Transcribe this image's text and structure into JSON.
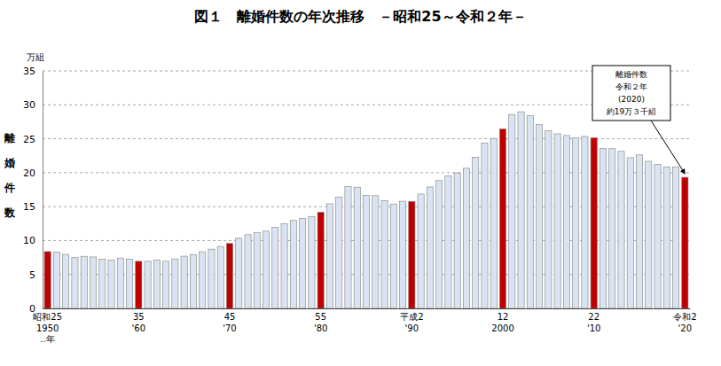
{
  "chart_data": {
    "type": "bar",
    "title": "図１　離婚件数の年次推移　－昭和25～令和２年－",
    "y_label": "離婚件数",
    "y_unit": "万組",
    "annotation": [
      "離婚件数",
      "令和２年",
      "(2020)",
      "約19万３千組"
    ],
    "categories": [
      "昭和25\n1950\n‥年",
      null,
      null,
      null,
      null,
      null,
      null,
      null,
      null,
      null,
      "35\n'60",
      null,
      null,
      null,
      null,
      null,
      null,
      null,
      null,
      null,
      "45\n'70",
      null,
      null,
      null,
      null,
      null,
      null,
      null,
      null,
      null,
      "55\n'80",
      null,
      null,
      null,
      null,
      null,
      null,
      null,
      null,
      null,
      "平成2\n'90",
      null,
      null,
      null,
      null,
      null,
      null,
      null,
      null,
      null,
      "12\n2000",
      null,
      null,
      null,
      null,
      null,
      null,
      null,
      null,
      null,
      "22\n'10",
      null,
      null,
      null,
      null,
      null,
      null,
      null,
      null,
      null,
      "令和2\n'20"
    ],
    "values": [
      8.37,
      8.27,
      7.96,
      7.5,
      7.68,
      7.58,
      7.26,
      7.13,
      7.42,
      7.27,
      6.94,
      6.95,
      7.12,
      6.95,
      7.29,
      7.7,
      7.95,
      8.35,
      8.73,
      9.13,
      9.57,
      10.34,
      10.86,
      11.14,
      11.39,
      11.96,
      12.48,
      12.96,
      13.26,
      13.53,
      14.17,
      15.42,
      16.39,
      17.94,
      17.87,
      16.67,
      16.61,
      15.88,
      15.38,
      15.79,
      15.77,
      16.86,
      17.9,
      18.83,
      19.54,
      19.96,
      20.65,
      22.26,
      24.34,
      25.06,
      26.45,
      28.58,
      28.98,
      28.38,
      27.08,
      26.18,
      25.73,
      25.48,
      25.11,
      25.34,
      25.14,
      23.57,
      23.54,
      23.14,
      22.21,
      22.62,
      21.68,
      21.2,
      20.83,
      20.86,
      19.32
    ],
    "colors": [
      "#c00000",
      "#d9e3f1",
      "#d9e3f1",
      "#d9e3f1",
      "#d9e3f1",
      "#d9e3f1",
      "#d9e3f1",
      "#d9e3f1",
      "#d9e3f1",
      "#d9e3f1",
      "#c00000",
      "#d9e3f1",
      "#d9e3f1",
      "#d9e3f1",
      "#d9e3f1",
      "#d9e3f1",
      "#d9e3f1",
      "#d9e3f1",
      "#d9e3f1",
      "#d9e3f1",
      "#c00000",
      "#d9e3f1",
      "#d9e3f1",
      "#d9e3f1",
      "#d9e3f1",
      "#d9e3f1",
      "#d9e3f1",
      "#d9e3f1",
      "#d9e3f1",
      "#d9e3f1",
      "#c00000",
      "#d9e3f1",
      "#d9e3f1",
      "#d9e3f1",
      "#d9e3f1",
      "#d9e3f1",
      "#d9e3f1",
      "#d9e3f1",
      "#d9e3f1",
      "#d9e3f1",
      "#c00000",
      "#d9e3f1",
      "#d9e3f1",
      "#d9e3f1",
      "#d9e3f1",
      "#d9e3f1",
      "#d9e3f1",
      "#d9e3f1",
      "#d9e3f1",
      "#d9e3f1",
      "#c00000",
      "#d9e3f1",
      "#d9e3f1",
      "#d9e3f1",
      "#d9e3f1",
      "#d9e3f1",
      "#d9e3f1",
      "#d9e3f1",
      "#d9e3f1",
      "#d9e3f1",
      "#c00000",
      "#d9e3f1",
      "#d9e3f1",
      "#d9e3f1",
      "#d9e3f1",
      "#d9e3f1",
      "#d9e3f1",
      "#d9e3f1",
      "#d9e3f1",
      "#d9e3f1",
      "#c00000"
    ],
    "ylim": [
      0,
      35
    ],
    "yticks": [
      0,
      5,
      10,
      15,
      20,
      25,
      30,
      35
    ],
    "grid": true
  }
}
